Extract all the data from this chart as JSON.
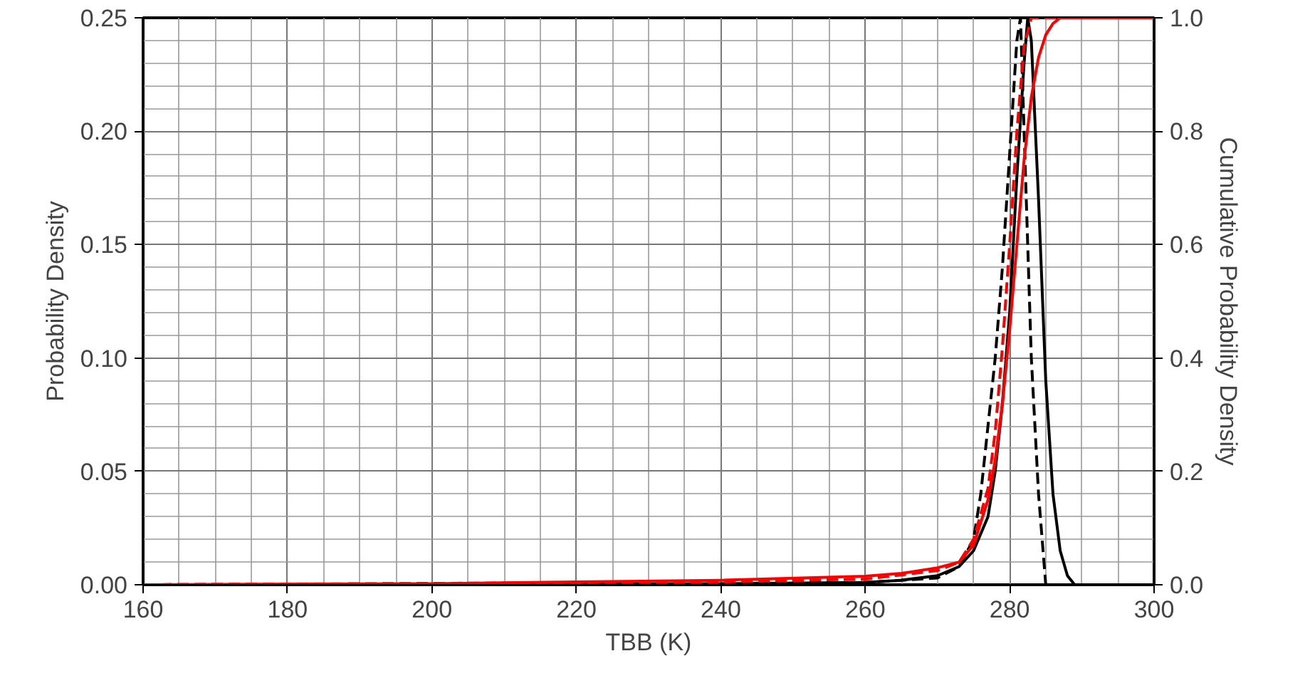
{
  "chart_data": {
    "type": "line",
    "xlabel": "TBB (K)",
    "ylabel": "Probability Density",
    "y2label": "Cumulative Probability Density",
    "xlim": [
      160,
      300
    ],
    "xticks": [
      160,
      180,
      200,
      220,
      240,
      260,
      280,
      300
    ],
    "ylim": [
      0,
      0.25
    ],
    "yticks": [
      {
        "value": 0,
        "label": "0.00"
      },
      {
        "value": 0.05,
        "label": "0.05"
      },
      {
        "value": 0.1,
        "label": "0.10"
      },
      {
        "value": 0.15,
        "label": "0.15"
      },
      {
        "value": 0.2,
        "label": "0.20"
      },
      {
        "value": 0.25,
        "label": "0.25"
      }
    ],
    "y2lim": [
      0,
      1
    ],
    "y2ticks": [
      {
        "value": 0,
        "label": "0.0"
      },
      {
        "value": 0.2,
        "label": "0.2"
      },
      {
        "value": 0.4,
        "label": "0.4"
      },
      {
        "value": 0.6,
        "label": "0.6"
      },
      {
        "value": 0.8,
        "label": "0.8"
      },
      {
        "value": 1,
        "label": "1.0"
      }
    ],
    "grid": true,
    "marker": "none",
    "series": [
      {
        "color": "#000000",
        "line_style": "solid",
        "x": [
          160,
          240,
          260,
          265,
          270,
          273,
          275,
          277,
          278,
          279,
          280,
          281,
          282,
          282.5,
          283,
          284,
          285,
          286,
          287,
          288,
          289,
          290,
          300
        ],
        "values": [
          0,
          0.0005,
          0.001,
          0.002,
          0.004,
          0.008,
          0.015,
          0.03,
          0.05,
          0.08,
          0.12,
          0.18,
          0.23,
          0.25,
          0.24,
          0.17,
          0.09,
          0.04,
          0.015,
          0.004,
          0,
          0,
          0
        ]
      },
      {
        "color": "#000000",
        "line_style": "dashed",
        "x": [
          160,
          260,
          270,
          273,
          275,
          276,
          277,
          278,
          279,
          280,
          281,
          281.5,
          282,
          283,
          284,
          285,
          300
        ],
        "values": [
          0,
          0.001,
          0.003,
          0.008,
          0.02,
          0.04,
          0.07,
          0.1,
          0.14,
          0.19,
          0.24,
          0.25,
          0.2,
          0.1,
          0.04,
          0,
          0
        ]
      },
      {
        "color": "#ff0000",
        "line_style": "solid",
        "axis": "y2",
        "x": [
          160,
          200,
          240,
          260,
          265,
          270,
          273,
          275,
          277,
          278,
          279,
          280,
          281,
          282,
          283,
          284,
          285,
          286,
          287,
          288,
          290,
          300
        ],
        "values": [
          0,
          0.002,
          0.008,
          0.015,
          0.02,
          0.03,
          0.04,
          0.07,
          0.15,
          0.22,
          0.32,
          0.45,
          0.6,
          0.75,
          0.86,
          0.93,
          0.97,
          0.99,
          1.0,
          1.0,
          1.0,
          1.0
        ]
      },
      {
        "color": "#ff0000",
        "line_style": "dashed",
        "axis": "y2",
        "x": [
          160,
          240,
          260,
          270,
          273,
          275,
          277,
          278,
          279,
          280,
          281,
          282,
          283,
          284,
          300
        ],
        "values": [
          0,
          0.005,
          0.01,
          0.025,
          0.04,
          0.08,
          0.17,
          0.27,
          0.42,
          0.6,
          0.8,
          0.95,
          1.0,
          1.0,
          1.0
        ]
      }
    ]
  }
}
